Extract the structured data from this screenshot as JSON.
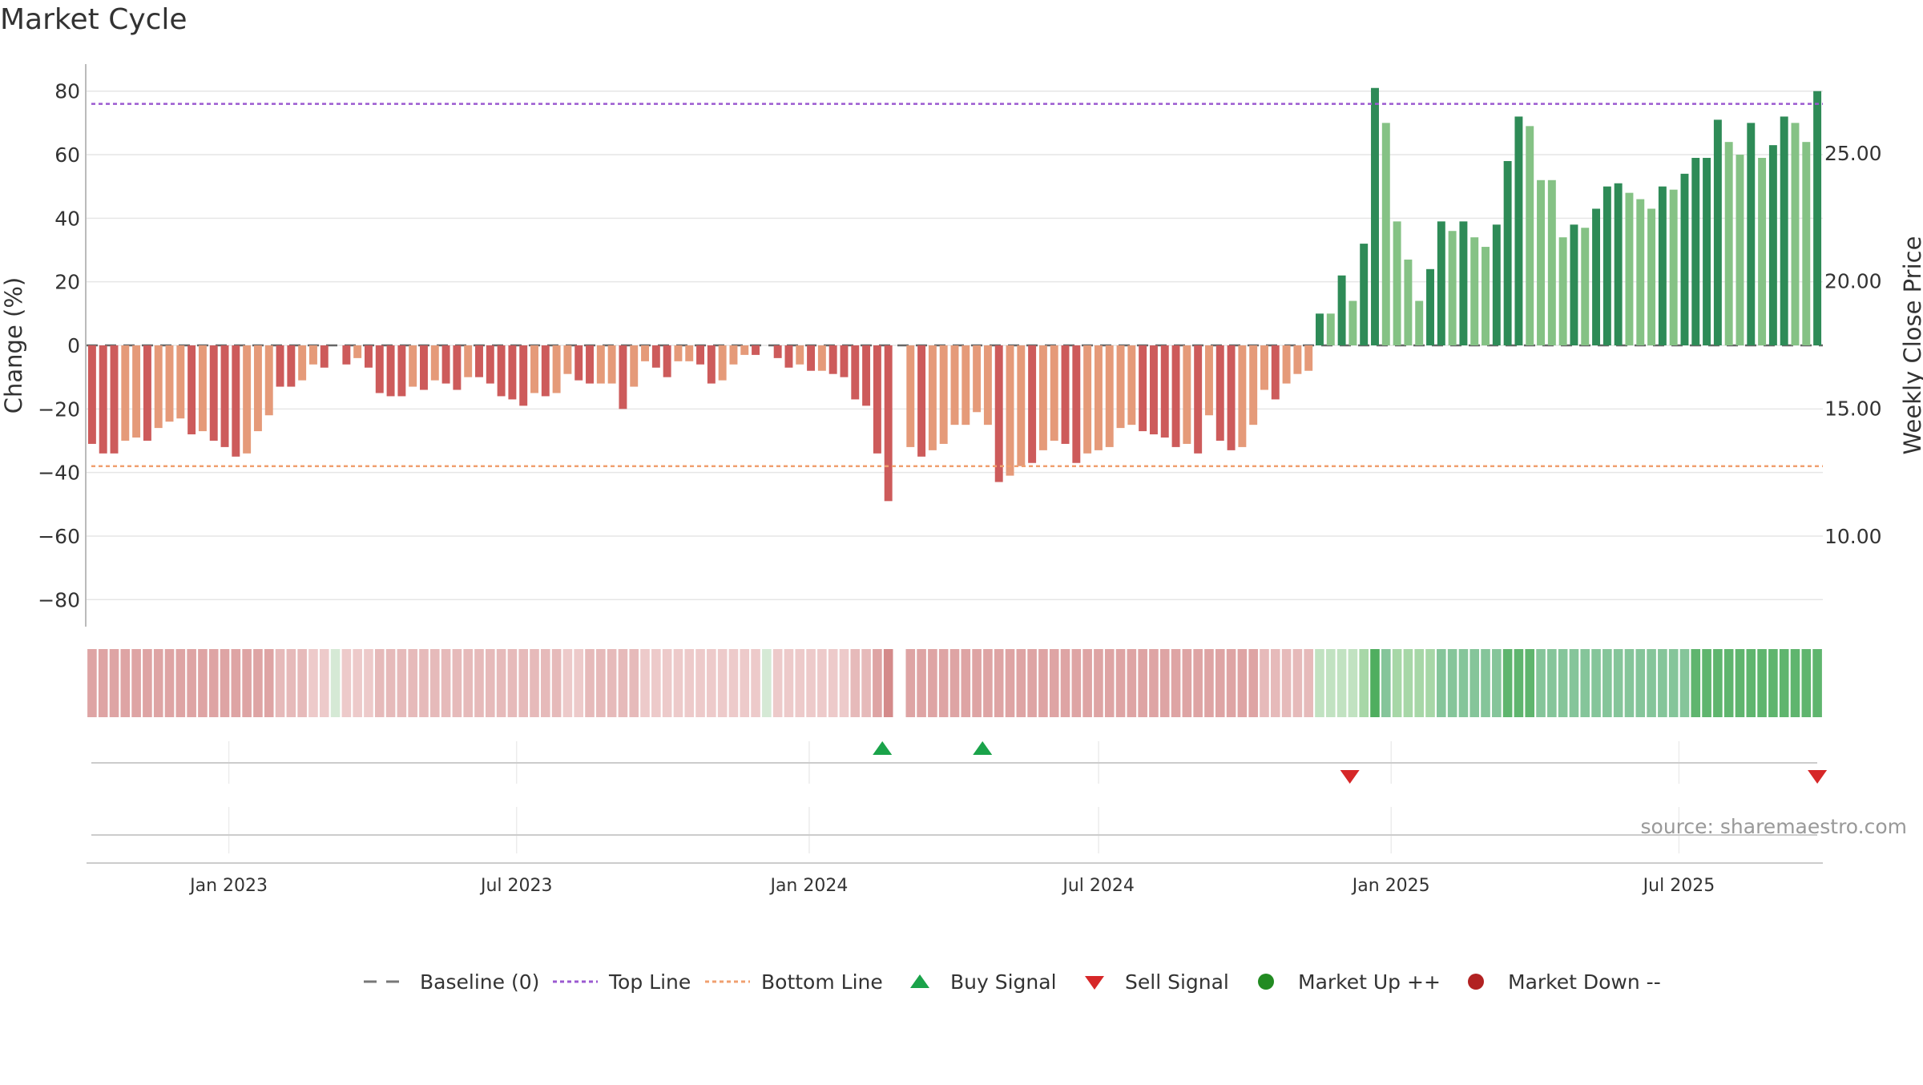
{
  "chart_data": {
    "type": "bar",
    "title": "Market Cycle",
    "ylabel": "Change (%)",
    "ylabel_right": "Weekly Close Price",
    "ylim": [
      -88,
      88
    ],
    "yticks": [
      80,
      60,
      40,
      20,
      0,
      -20,
      -40,
      -60,
      -80
    ],
    "ytick_labels": [
      "80",
      "60",
      "40",
      "20",
      "0",
      "−20",
      "−40",
      "−60",
      "−80"
    ],
    "y2ticks": [
      25,
      20,
      15,
      10
    ],
    "y2tick_labels": [
      "25.00",
      "20.00",
      "15.00",
      "10.00"
    ],
    "top_line": 76,
    "bottom_line": -38,
    "x_start": "2022-10-07",
    "x_end": "2025-09-26",
    "xticks": [
      {
        "date": "2023-01-01",
        "label": "Jan 2023"
      },
      {
        "date": "2023-07-01",
        "label": "Jul 2023"
      },
      {
        "date": "2024-01-01",
        "label": "Jan 2024"
      },
      {
        "date": "2024-07-01",
        "label": "Jul 2024"
      },
      {
        "date": "2025-01-01",
        "label": "Jan 2025"
      },
      {
        "date": "2025-07-01",
        "label": "Jul 2025"
      }
    ],
    "series": [
      {
        "values": [
          -31,
          -34,
          -34,
          -30,
          -29,
          -30,
          -26,
          -24,
          -23,
          -28,
          -27,
          -30,
          -32,
          -35,
          -34,
          -27,
          -22,
          -13,
          -13,
          -11,
          -6,
          -7,
          0,
          -6,
          -4,
          -7,
          -15,
          -16,
          -16,
          -13,
          -14,
          -11,
          -12,
          -14,
          -10,
          -10,
          -12,
          -16,
          -17,
          -19,
          -15,
          -16,
          -15,
          -9,
          -11,
          -12,
          -12,
          -12,
          -20,
          -13,
          -5,
          -7,
          -10,
          -5,
          -5,
          -6,
          -12,
          -11,
          -6,
          -3,
          -3,
          0,
          -4,
          -7,
          -6,
          -8,
          -8,
          -9,
          -10,
          -17,
          -19,
          -34,
          -49,
          0,
          -32,
          -35,
          -33,
          -31,
          -25,
          -25,
          -21,
          -25,
          -43,
          -41,
          -38,
          -37,
          -33,
          -30,
          -31,
          -37,
          -34,
          -33,
          -32,
          -26,
          -25,
          -27,
          -28,
          -29,
          -32,
          -31,
          -34,
          -22,
          -30,
          -33,
          -32,
          -25,
          -14,
          -17,
          -12,
          -9,
          -8,
          10,
          10,
          22,
          14,
          32,
          81,
          70,
          39,
          27,
          14,
          24,
          39,
          36,
          39,
          34,
          31,
          38,
          58,
          72,
          69,
          52,
          52,
          34,
          38,
          37,
          43,
          50,
          51,
          48,
          46,
          43,
          50,
          49,
          54,
          59,
          59,
          71,
          64,
          60,
          70,
          59,
          63,
          72,
          70,
          64,
          80
        ],
        "colors": [
          "#cd5b5b",
          "#cd5b5b",
          "#cd5b5b",
          "#e59a79",
          "#e59a79",
          "#cd5b5b",
          "#e59a79",
          "#e59a79",
          "#e59a79",
          "#cd5b5b",
          "#e59a79",
          "#cd5b5b",
          "#cd5b5b",
          "#cd5b5b",
          "#e59a79",
          "#e59a79",
          "#e59a79",
          "#cd5b5b",
          "#cd5b5b",
          "#e59a79",
          "#e59a79",
          "#cd5b5b",
          "#e59a79",
          "#cd5b5b",
          "#e59a79",
          "#cd5b5b",
          "#cd5b5b",
          "#cd5b5b",
          "#cd5b5b",
          "#e59a79",
          "#cd5b5b",
          "#e59a79",
          "#cd5b5b",
          "#cd5b5b",
          "#e59a79",
          "#cd5b5b",
          "#cd5b5b",
          "#cd5b5b",
          "#cd5b5b",
          "#cd5b5b",
          "#e59a79",
          "#cd5b5b",
          "#e59a79",
          "#e59a79",
          "#cd5b5b",
          "#cd5b5b",
          "#e59a79",
          "#e59a79",
          "#cd5b5b",
          "#e59a79",
          "#e59a79",
          "#cd5b5b",
          "#cd5b5b",
          "#e59a79",
          "#e59a79",
          "#cd5b5b",
          "#cd5b5b",
          "#e59a79",
          "#e59a79",
          "#e59a79",
          "#cd5b5b",
          "#e59a79",
          "#cd5b5b",
          "#cd5b5b",
          "#e59a79",
          "#cd5b5b",
          "#e59a79",
          "#cd5b5b",
          "#cd5b5b",
          "#cd5b5b",
          "#cd5b5b",
          "#cd5b5b",
          "#cd5b5b",
          "#e59a79",
          "#e59a79",
          "#cd5b5b",
          "#e59a79",
          "#e59a79",
          "#e59a79",
          "#e59a79",
          "#e59a79",
          "#e59a79",
          "#cd5b5b",
          "#e59a79",
          "#e59a79",
          "#cd5b5b",
          "#e59a79",
          "#e59a79",
          "#cd5b5b",
          "#cd5b5b",
          "#e59a79",
          "#e59a79",
          "#e59a79",
          "#e59a79",
          "#e59a79",
          "#cd5b5b",
          "#cd5b5b",
          "#cd5b5b",
          "#cd5b5b",
          "#e59a79",
          "#cd5b5b",
          "#e59a79",
          "#cd5b5b",
          "#cd5b5b",
          "#e59a79",
          "#e59a79",
          "#e59a79",
          "#cd5b5b",
          "#e59a79",
          "#e59a79",
          "#e59a79",
          "#2e8b57",
          "#85c285",
          "#2e8b57",
          "#85c285",
          "#2e8b57",
          "#2e8b57",
          "#85c285",
          "#85c285",
          "#85c285",
          "#85c285",
          "#2e8b57",
          "#2e8b57",
          "#85c285",
          "#2e8b57",
          "#85c285",
          "#85c285",
          "#2e8b57",
          "#2e8b57",
          "#2e8b57",
          "#85c285",
          "#85c285",
          "#85c285",
          "#85c285",
          "#2e8b57",
          "#85c285",
          "#2e8b57",
          "#2e8b57",
          "#2e8b57",
          "#85c285",
          "#85c285",
          "#85c285",
          "#2e8b57",
          "#85c285",
          "#2e8b57",
          "#2e8b57",
          "#2e8b57",
          "#2e8b57",
          "#85c285",
          "#85c285",
          "#2e8b57",
          "#85c285",
          "#2e8b57",
          "#2e8b57",
          "#85c285",
          "#85c285",
          "#2e8b57"
        ]
      }
    ],
    "heat_strip": {
      "colors": [
        "#dea4a4",
        "#dea4a4",
        "#dea4a4",
        "#dea4a4",
        "#dea4a4",
        "#dea4a4",
        "#dea4a4",
        "#dea4a4",
        "#dea4a4",
        "#dea4a4",
        "#dea4a4",
        "#dea4a4",
        "#dea4a4",
        "#dea4a4",
        "#dea4a4",
        "#dea4a4",
        "#dea4a4",
        "#e6baba",
        "#e6baba",
        "#e6baba",
        "#edcaca",
        "#edcaca",
        "#d5e9d5",
        "#edcaca",
        "#edcaca",
        "#edcaca",
        "#e6baba",
        "#e6baba",
        "#e6baba",
        "#e6baba",
        "#e6baba",
        "#e6baba",
        "#e6baba",
        "#e6baba",
        "#e6baba",
        "#e6baba",
        "#e6baba",
        "#e6baba",
        "#e6baba",
        "#e6baba",
        "#e6baba",
        "#e6baba",
        "#e6baba",
        "#edcaca",
        "#edcaca",
        "#e6baba",
        "#e6baba",
        "#e6baba",
        "#e6baba",
        "#e6baba",
        "#edcaca",
        "#edcaca",
        "#edcaca",
        "#edcaca",
        "#edcaca",
        "#edcaca",
        "#edcaca",
        "#edcaca",
        "#edcaca",
        "#edcaca",
        "#edcaca",
        "#d5e9d5",
        "#edcaca",
        "#edcaca",
        "#edcaca",
        "#edcaca",
        "#edcaca",
        "#edcaca",
        "#edcaca",
        "#e6baba",
        "#e6baba",
        "#dea4a4",
        "#d48a8a",
        "#ffffff",
        "#dea4a4",
        "#dea4a4",
        "#dea4a4",
        "#dea4a4",
        "#dea4a4",
        "#dea4a4",
        "#dea4a4",
        "#dea4a4",
        "#dea4a4",
        "#dea4a4",
        "#dea4a4",
        "#dea4a4",
        "#dea4a4",
        "#dea4a4",
        "#dea4a4",
        "#dea4a4",
        "#dea4a4",
        "#dea4a4",
        "#dea4a4",
        "#dea4a4",
        "#dea4a4",
        "#dea4a4",
        "#dea4a4",
        "#dea4a4",
        "#dea4a4",
        "#dea4a4",
        "#dea4a4",
        "#dea4a4",
        "#dea4a4",
        "#dea4a4",
        "#dea4a4",
        "#dea4a4",
        "#e6baba",
        "#e6baba",
        "#e6baba",
        "#e6baba",
        "#e6baba",
        "#c1e2c1",
        "#c1e2c1",
        "#c1e2c1",
        "#c1e2c1",
        "#a7d7a7",
        "#4fae5f",
        "#85c59a",
        "#a7d7a7",
        "#a7d7a7",
        "#a7d7a7",
        "#a7d7a7",
        "#85c59a",
        "#85c59a",
        "#85c59a",
        "#85c59a",
        "#85c59a",
        "#85c59a",
        "#5fb56e",
        "#5fb56e",
        "#5fb56e",
        "#85c59a",
        "#85c59a",
        "#85c59a",
        "#85c59a",
        "#85c59a",
        "#85c59a",
        "#85c59a",
        "#85c59a",
        "#85c59a",
        "#85c59a",
        "#85c59a",
        "#85c59a",
        "#85c59a",
        "#85c59a",
        "#5fb56e",
        "#5fb56e",
        "#5fb56e",
        "#5fb56e",
        "#5fb56e",
        "#5fb56e",
        "#5fb56e",
        "#5fb56e",
        "#5fb56e",
        "#5fb56e",
        "#5fb56e",
        "#5fb56e"
      ]
    },
    "buy_signals": [
      "2024-02-16",
      "2024-04-19"
    ],
    "sell_signals": [
      "2024-12-06",
      "2025-09-26"
    ],
    "legend": [
      {
        "label": "Baseline (0)",
        "marker": "dash",
        "color": "#777777"
      },
      {
        "label": "Top Line",
        "marker": "dotted",
        "color": "#9b59d0"
      },
      {
        "label": "Bottom Line",
        "marker": "dotted",
        "color": "#f0a070"
      },
      {
        "label": "Buy Signal",
        "marker": "triangle-up",
        "color": "#1aa34a"
      },
      {
        "label": "Sell Signal",
        "marker": "triangle-down",
        "color": "#d62728"
      },
      {
        "label": "Market Up ++",
        "marker": "circle",
        "color": "#228b22"
      },
      {
        "label": "Market Down --",
        "marker": "circle",
        "color": "#b22222"
      }
    ],
    "legend_placement": "bottom",
    "grid": true,
    "source": "source: sharemaestro.com"
  }
}
